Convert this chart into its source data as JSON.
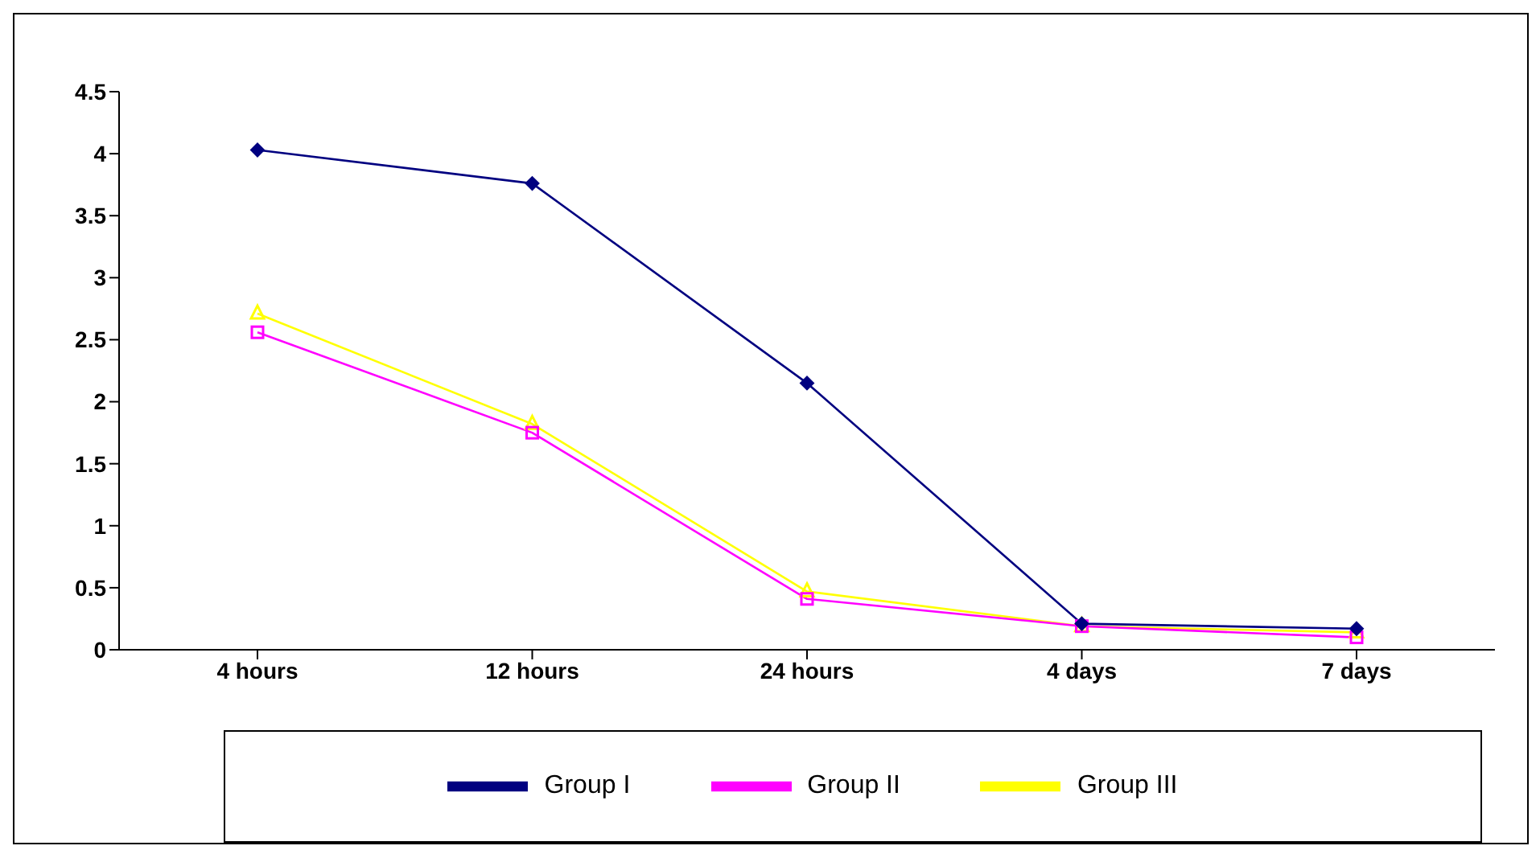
{
  "chart_data": {
    "type": "line",
    "categories": [
      "4 hours",
      "12 hours",
      "24 hours",
      "4 days",
      "7 days"
    ],
    "series": [
      {
        "name": "Group I",
        "color": "#000080",
        "marker": "diamond",
        "values": [
          4.03,
          3.76,
          2.15,
          0.21,
          0.17
        ]
      },
      {
        "name": "Group II",
        "color": "#ff00ff",
        "marker": "square",
        "values": [
          2.56,
          1.75,
          0.41,
          0.19,
          0.1
        ]
      },
      {
        "name": "Group III",
        "color": "#ffff00",
        "marker": "triangle",
        "values": [
          2.71,
          1.82,
          0.47,
          0.19,
          0.14
        ]
      }
    ],
    "ylim": [
      0,
      4.5
    ],
    "yticks": [
      0,
      0.5,
      1,
      1.5,
      2,
      2.5,
      3,
      3.5,
      4,
      4.5
    ],
    "grid": false,
    "legend": "bottom"
  }
}
